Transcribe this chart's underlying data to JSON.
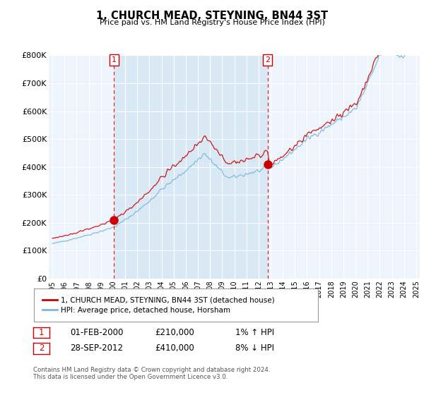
{
  "title": "1, CHURCH MEAD, STEYNING, BN44 3ST",
  "subtitle": "Price paid vs. HM Land Registry's House Price Index (HPI)",
  "legend_line1": "1, CHURCH MEAD, STEYNING, BN44 3ST (detached house)",
  "legend_line2": "HPI: Average price, detached house, Horsham",
  "sale1_date": "01-FEB-2000",
  "sale1_price": 210000,
  "sale1_hpi": "1% ↑ HPI",
  "sale2_date": "28-SEP-2012",
  "sale2_price": 410000,
  "sale2_hpi": "8% ↓ HPI",
  "footnote": "Contains HM Land Registry data © Crown copyright and database right 2024.\nThis data is licensed under the Open Government Licence v3.0.",
  "hpi_color": "#7ab5d8",
  "price_color": "#cc0000",
  "marker_color": "#cc0000",
  "background_color": "#eef4fb",
  "grid_color": "#ffffff",
  "shade_color": "#d8e8f5",
  "ylim": [
    0,
    800000
  ],
  "yticks": [
    0,
    100000,
    200000,
    300000,
    400000,
    500000,
    600000,
    700000,
    800000
  ],
  "ytick_labels": [
    "£0",
    "£100K",
    "£200K",
    "£300K",
    "£400K",
    "£500K",
    "£600K",
    "£700K",
    "£800K"
  ],
  "sale1_x": 2000.08,
  "sale1_y": 210000,
  "sale2_x": 2012.75,
  "sale2_y": 410000,
  "vline1_x": 2000.08,
  "vline2_x": 2012.75,
  "xlim_left": 1994.7,
  "xlim_right": 2025.3
}
